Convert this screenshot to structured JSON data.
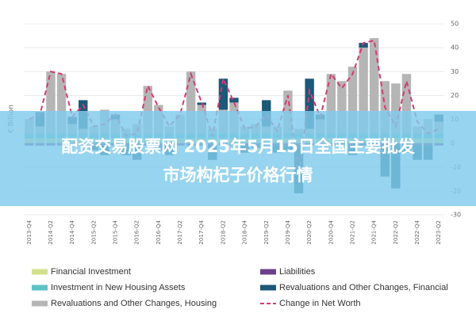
{
  "chart_data": {
    "type": "bar",
    "stacked": true,
    "y_axis_label": "€ Billion",
    "y_axis_side": "right",
    "categories": [
      "2013-Q4",
      null,
      "2014-Q2",
      null,
      "2014-Q4",
      null,
      "2015-Q2",
      null,
      "2015-Q4",
      null,
      "2016-Q2",
      null,
      "2016-Q4",
      null,
      "2017-Q2",
      null,
      "2017-Q4",
      null,
      "2018-Q2",
      null,
      "2018-Q4",
      null,
      "2019-Q2",
      null,
      "2019-Q4",
      null,
      "2020-Q2",
      null,
      "2020-Q4",
      null,
      "2021-Q2",
      null,
      "2021-Q4",
      null,
      "2022-Q2",
      null,
      "2022-Q4",
      null,
      "2023-Q2"
    ],
    "series": [
      {
        "name": "Financial Investment",
        "type": "bar",
        "color": "#d3e08d",
        "values": [
          2,
          2,
          2,
          2,
          2,
          2,
          2,
          2,
          2,
          2,
          2,
          2,
          2,
          2,
          2,
          2,
          2,
          2,
          2,
          2,
          2,
          2,
          2,
          2,
          2,
          2,
          2,
          2,
          2,
          2,
          2,
          2,
          2,
          2,
          2,
          2,
          2,
          2,
          2
        ]
      },
      {
        "name": "Investment in New Housing Assets",
        "type": "bar",
        "color": "#5fc2c4",
        "values": [
          2,
          2,
          2,
          2,
          2,
          2,
          2,
          2,
          2,
          2,
          2,
          2,
          2,
          2,
          2,
          2,
          2,
          2,
          2,
          2,
          2,
          2,
          2,
          2,
          2,
          2,
          2,
          2,
          2,
          2,
          2,
          2,
          2,
          2,
          2,
          2,
          2,
          2,
          2
        ]
      },
      {
        "name": "Revaluations and Other Changes, Housing",
        "type": "bar",
        "color": "#b5b5b5",
        "values": [
          6,
          3,
          26,
          25,
          4,
          2,
          3,
          10,
          6,
          2,
          4,
          20,
          12,
          3,
          8,
          26,
          12,
          2,
          10,
          13,
          3,
          4,
          3,
          3,
          18,
          2,
          2,
          6,
          25,
          22,
          28,
          36,
          40,
          22,
          21,
          25,
          3,
          6,
          5
        ]
      },
      {
        "name": "Liabilities",
        "type": "bar",
        "color": "#6e3f8c",
        "values": [
          -1,
          -1,
          -1,
          -1,
          -1,
          -1,
          -1,
          -1,
          -1,
          -1,
          -1,
          -1,
          -1,
          -1,
          -1,
          -1,
          -1,
          -1,
          -1,
          -1,
          -1,
          -1,
          -1,
          -1,
          -1,
          -1,
          -1,
          -1,
          -1,
          -1,
          -1,
          -1,
          -1,
          -1,
          -1,
          -1,
          -1,
          -1,
          -1
        ]
      },
      {
        "name": "Revaluations and Other Changes, Financial",
        "type": "bar",
        "color": "#1c5877",
        "values": [
          0,
          6,
          0,
          0,
          3,
          12,
          -2,
          -4,
          2,
          -4,
          -6,
          0,
          -2,
          -4,
          0,
          0,
          1,
          -6,
          13,
          2,
          -3,
          -1,
          11,
          -3,
          -2,
          -20,
          21,
          2,
          0,
          0,
          -4,
          2,
          -1,
          -13,
          -18,
          -3,
          -6,
          -6,
          3
        ]
      },
      {
        "name": "Change in Net Worth",
        "type": "line",
        "color": "#d63a72",
        "values": [
          10,
          12,
          30,
          29,
          11,
          16,
          7,
          8,
          12,
          3,
          4,
          24,
          15,
          7,
          12,
          29,
          17,
          3,
          27,
          17,
          6,
          7,
          12,
          5,
          20,
          -14,
          22,
          11,
          29,
          23,
          29,
          42,
          43,
          15,
          7,
          26,
          9,
          4,
          6
        ]
      }
    ],
    "ylim": [
      -30,
      50
    ],
    "yticks": [
      -30,
      -20,
      -10,
      0,
      10,
      20,
      30,
      40,
      50
    ],
    "grid": true,
    "banner": {
      "lines": [
        "配资交易股票网 2025年5月15日全国主要批发",
        "市场构杞子价格行情"
      ]
    }
  }
}
